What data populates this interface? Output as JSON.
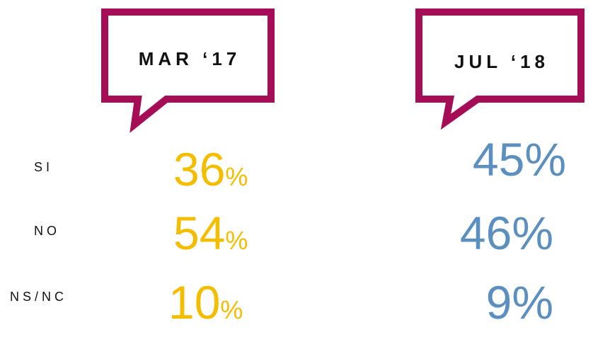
{
  "rows": [
    "SI",
    "NO",
    "NS/NC"
  ],
  "panels": [
    {
      "title": "MAR ‘17",
      "cells": [
        {
          "number": "36",
          "unit": "%"
        },
        {
          "number": "54",
          "unit": "%"
        },
        {
          "number": "10",
          "unit": "%"
        }
      ]
    },
    {
      "title": "JUL ‘18",
      "cells": [
        {
          "number": "45",
          "unit": "%"
        },
        {
          "number": "46",
          "unit": "%"
        },
        {
          "number": "9",
          "unit": "%"
        }
      ]
    }
  ]
}
